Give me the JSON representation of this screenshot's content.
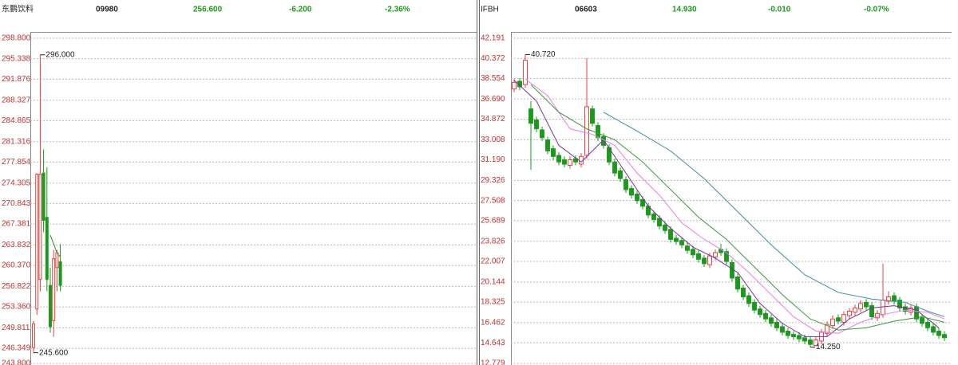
{
  "chart_data": [
    {
      "type": "candlestick",
      "name": "东鹏饮料",
      "code": "09980",
      "price": "256.600",
      "change": "-6.200",
      "change_pct": "-2.36%",
      "up_color": "#e8403c",
      "down_color": "#1a9a1a",
      "grid": true,
      "ylim": [
        243.8,
        298.8
      ],
      "yticks": [
        {
          "value": 298.8,
          "label": "298.800"
        },
        {
          "value": 295.338,
          "label": "295.338"
        },
        {
          "value": 291.876,
          "label": "291.876"
        },
        {
          "value": 288.327,
          "label": "288.327"
        },
        {
          "value": 284.865,
          "label": "284.865"
        },
        {
          "value": 281.316,
          "label": "281.316"
        },
        {
          "value": 277.854,
          "label": "277.854"
        },
        {
          "value": 274.305,
          "label": "274.305"
        },
        {
          "value": 270.843,
          "label": "270.843"
        },
        {
          "value": 267.381,
          "label": "267.381"
        },
        {
          "value": 263.832,
          "label": "263.832"
        },
        {
          "value": 260.37,
          "label": "260.370"
        },
        {
          "value": 256.822,
          "label": "256.822"
        },
        {
          "value": 253.36,
          "label": "253.360"
        },
        {
          "value": 249.811,
          "label": "249.811"
        },
        {
          "value": 246.349,
          "label": "246.349"
        },
        {
          "value": 243.8,
          "label": "243.800"
        }
      ],
      "open": [
        246.5,
        253,
        258,
        276,
        268.5,
        257,
        251,
        260,
        261
      ],
      "high": [
        251,
        276,
        296,
        280,
        277,
        260,
        263,
        263,
        264
      ],
      "low": [
        245.6,
        252,
        256,
        266,
        256,
        249,
        248.3,
        256,
        256
      ],
      "close": [
        250.5,
        275.8,
        275.8,
        268,
        258,
        250,
        261.5,
        262.5,
        257
      ],
      "max_label": "296.000",
      "min_label": "245.600",
      "lines": [
        {
          "color": "#2e8b2e",
          "x": [
            5,
            6,
            7,
            8
          ],
          "values": [
            265.5,
            264,
            262.5,
            261.8
          ]
        }
      ]
    },
    {
      "type": "candlestick",
      "name": "IFBH",
      "code": "06603",
      "price": "14.930",
      "change": "-0.010",
      "change_pct": "-0.07%",
      "up_color": "#e8403c",
      "down_color": "#1a9a1a",
      "grid": true,
      "ylim": [
        12.779,
        42.191
      ],
      "yticks": [
        {
          "value": 42.191,
          "label": "42.191"
        },
        {
          "value": 40.372,
          "label": "40.372"
        },
        {
          "value": 38.554,
          "label": "38.554"
        },
        {
          "value": 36.69,
          "label": "36.690"
        },
        {
          "value": 34.872,
          "label": "34.872"
        },
        {
          "value": 33.008,
          "label": "33.008"
        },
        {
          "value": 31.19,
          "label": "31.190"
        },
        {
          "value": 29.326,
          "label": "29.326"
        },
        {
          "value": 27.508,
          "label": "27.508"
        },
        {
          "value": 25.689,
          "label": "25.689"
        },
        {
          "value": 23.826,
          "label": "23.826"
        },
        {
          "value": 22.007,
          "label": "22.007"
        },
        {
          "value": 20.144,
          "label": "20.144"
        },
        {
          "value": 18.325,
          "label": "18.325"
        },
        {
          "value": 16.462,
          "label": "16.462"
        },
        {
          "value": 14.643,
          "label": "14.643"
        },
        {
          "value": 12.779,
          "label": "12.779"
        }
      ],
      "open": [
        37.6,
        38.3,
        38.0,
        35.8,
        34.8,
        33.9,
        33.0,
        32.2,
        31.6,
        31.2,
        30.7,
        31.3,
        30.8,
        31.6,
        35.8,
        34.3,
        33.3,
        32.3,
        31.0,
        30.2,
        29.4,
        28.6,
        28.1,
        27.6,
        27.0,
        26.3,
        25.9,
        25.3,
        24.9,
        24.1,
        23.9,
        23.4,
        23.1,
        22.7,
        22.3,
        21.7,
        22.4,
        23.1,
        22.9,
        21.9,
        20.6,
        19.6,
        18.9,
        18.3,
        17.7,
        17.3,
        16.9,
        16.5,
        16.1,
        15.7,
        15.4,
        15.3,
        15.1,
        14.9,
        14.4,
        14.8,
        15.5,
        16.2,
        16.9,
        16.5,
        17.1,
        17.4,
        17.7,
        18.3,
        18.0,
        16.9,
        17.2,
        18.4,
        18.9,
        18.5,
        17.9,
        17.4,
        17.9,
        16.9,
        16.5,
        16.1,
        15.7,
        15.4
      ],
      "high": [
        38.5,
        38.6,
        40.72,
        36.5,
        35.1,
        34.2,
        33.3,
        32.5,
        31.9,
        31.5,
        31.5,
        31.6,
        31.8,
        40.4,
        36.1,
        34.6,
        33.6,
        32.6,
        31.3,
        30.5,
        29.7,
        28.9,
        28.4,
        27.9,
        27.3,
        26.6,
        26.2,
        25.6,
        25.2,
        24.4,
        24.2,
        23.7,
        23.4,
        23.0,
        22.6,
        22.8,
        23.1,
        23.6,
        23.2,
        22.2,
        20.9,
        19.9,
        19.2,
        18.6,
        18.0,
        17.6,
        17.2,
        16.8,
        16.4,
        16.0,
        15.7,
        15.6,
        15.4,
        15.2,
        15.2,
        15.9,
        16.6,
        17.1,
        17.2,
        17.5,
        17.8,
        18.1,
        18.5,
        18.6,
        18.3,
        17.6,
        21.8,
        19.3,
        19.2,
        18.8,
        18.2,
        18.1,
        18.2,
        17.2,
        16.8,
        16.4,
        16.0,
        15.7
      ],
      "low": [
        37.3,
        37.5,
        37.7,
        30.3,
        33.7,
        32.9,
        31.7,
        31.2,
        30.7,
        30.5,
        30.4,
        30.7,
        30.5,
        31.3,
        34.2,
        32.9,
        32.2,
        30.7,
        29.7,
        29.2,
        28.2,
        27.7,
        27.2,
        26.7,
        25.9,
        25.5,
        24.9,
        24.5,
        23.7,
        23.5,
        23.2,
        22.7,
        22.3,
        21.9,
        21.5,
        21.4,
        22.1,
        22.5,
        21.7,
        20.2,
        19.2,
        18.5,
        17.9,
        17.3,
        16.9,
        16.5,
        16.1,
        15.7,
        15.3,
        15.0,
        14.9,
        14.7,
        14.5,
        14.25,
        14.3,
        14.5,
        15.2,
        15.9,
        16.3,
        16.2,
        16.8,
        17.1,
        17.4,
        17.6,
        16.7,
        16.6,
        16.9,
        18.1,
        18.1,
        17.5,
        17.2,
        17.1,
        16.5,
        16.1,
        15.7,
        15.3,
        15.0,
        14.8
      ],
      "close": [
        38.2,
        37.8,
        40.2,
        34.5,
        34.0,
        33.2,
        32.0,
        31.5,
        31.0,
        30.8,
        31.2,
        31.0,
        31.5,
        36.0,
        34.5,
        33.2,
        32.5,
        31.0,
        30.0,
        29.5,
        28.5,
        28.0,
        27.5,
        27.0,
        26.2,
        25.8,
        25.2,
        24.8,
        24.0,
        23.8,
        23.5,
        23.0,
        22.6,
        22.2,
        21.8,
        22.5,
        22.8,
        22.8,
        22.0,
        20.5,
        19.5,
        18.8,
        18.2,
        17.6,
        17.2,
        16.8,
        16.4,
        16.0,
        15.6,
        15.3,
        15.2,
        15.0,
        14.8,
        14.5,
        14.9,
        15.6,
        16.3,
        16.8,
        16.6,
        17.2,
        17.5,
        17.8,
        18.2,
        17.9,
        17.0,
        17.3,
        18.5,
        18.8,
        18.4,
        17.8,
        17.5,
        17.8,
        16.8,
        16.4,
        16.0,
        15.6,
        15.3,
        15.1
      ],
      "max_label": "40.720",
      "min_label": "14.250",
      "lines": [
        {
          "color": "#7b2d9e",
          "x": [
            0,
            4,
            8,
            12,
            16,
            20,
            24,
            28,
            32,
            36,
            40,
            44,
            48,
            52,
            56,
            60,
            64,
            68,
            72,
            76
          ],
          "values": [
            38.4,
            36.5,
            32.5,
            31.0,
            33.0,
            30.0,
            27.0,
            25.0,
            23.3,
            22.3,
            21.0,
            18.2,
            16.4,
            15.2,
            15.2,
            16.8,
            17.8,
            18.0,
            17.6,
            16.0
          ]
        },
        {
          "color": "#e87de8",
          "x": [
            2,
            6,
            10,
            14,
            18,
            22,
            26,
            30,
            34,
            38,
            42,
            46,
            50,
            54,
            58,
            62,
            66,
            70,
            74,
            77
          ],
          "values": [
            38.5,
            37.0,
            34.0,
            33.5,
            32.5,
            30.0,
            28.0,
            25.5,
            24.0,
            22.8,
            21.0,
            19.0,
            17.0,
            15.7,
            15.5,
            16.5,
            17.2,
            17.6,
            17.4,
            16.8
          ]
        },
        {
          "color": "#3a9a3a",
          "x": [
            3,
            8,
            13,
            18,
            23,
            28,
            33,
            38,
            43,
            48,
            53,
            58,
            63,
            68,
            73,
            77
          ],
          "values": [
            38.0,
            35.5,
            34.0,
            33.0,
            31.0,
            28.5,
            26.0,
            24.0,
            21.5,
            19.0,
            16.8,
            15.8,
            16.0,
            16.6,
            17.0,
            16.5
          ]
        },
        {
          "color": "#3a8fa8",
          "x": [
            16,
            22,
            28,
            34,
            40,
            46,
            52,
            58,
            64,
            70,
            74,
            77
          ],
          "values": [
            35.5,
            33.8,
            32.0,
            29.5,
            26.5,
            23.5,
            20.8,
            19.2,
            18.6,
            18.3,
            17.5,
            17.0
          ]
        }
      ]
    }
  ]
}
